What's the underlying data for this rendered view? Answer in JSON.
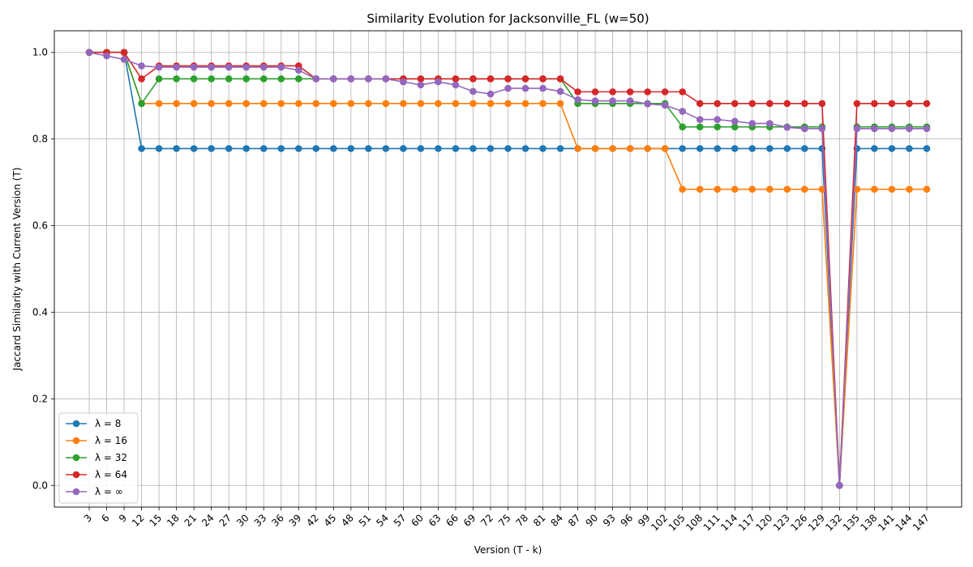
{
  "chart_data": {
    "type": "line",
    "title": "Similarity Evolution for Jacksonville_FL (w=50)",
    "xlabel": "Version (T - k)",
    "ylabel": "Jaccard Similarity with Current Version (T)",
    "ylim": [
      -0.05,
      1.05
    ],
    "yticks": [
      "0.0",
      "0.2",
      "0.4",
      "0.6",
      "0.8",
      "1.0"
    ],
    "grid": true,
    "legend_position": "lower-left",
    "x": [
      3,
      6,
      9,
      12,
      15,
      18,
      21,
      24,
      27,
      30,
      33,
      36,
      39,
      42,
      45,
      48,
      51,
      54,
      57,
      60,
      63,
      66,
      69,
      72,
      75,
      78,
      81,
      84,
      87,
      90,
      93,
      96,
      99,
      102,
      105,
      108,
      111,
      114,
      117,
      120,
      123,
      126,
      129,
      132,
      135,
      138,
      141,
      144,
      147
    ],
    "series": [
      {
        "name": "λ = 8",
        "color": "#1f77b4",
        "values": [
          1.0,
          1.0,
          1.0,
          0.778,
          0.778,
          0.778,
          0.778,
          0.778,
          0.778,
          0.778,
          0.778,
          0.778,
          0.778,
          0.778,
          0.778,
          0.778,
          0.778,
          0.778,
          0.778,
          0.778,
          0.778,
          0.778,
          0.778,
          0.778,
          0.778,
          0.778,
          0.778,
          0.778,
          0.778,
          0.778,
          0.778,
          0.778,
          0.778,
          0.778,
          0.778,
          0.778,
          0.778,
          0.778,
          0.778,
          0.778,
          0.778,
          0.778,
          0.778,
          0.0,
          0.778,
          0.778,
          0.778,
          0.778,
          0.778
        ]
      },
      {
        "name": "λ = 16",
        "color": "#ff7f0e",
        "values": [
          1.0,
          1.0,
          1.0,
          0.882,
          0.882,
          0.882,
          0.882,
          0.882,
          0.882,
          0.882,
          0.882,
          0.882,
          0.882,
          0.882,
          0.882,
          0.882,
          0.882,
          0.882,
          0.882,
          0.882,
          0.882,
          0.882,
          0.882,
          0.882,
          0.882,
          0.882,
          0.882,
          0.882,
          0.778,
          0.778,
          0.778,
          0.778,
          0.778,
          0.778,
          0.684,
          0.684,
          0.684,
          0.684,
          0.684,
          0.684,
          0.684,
          0.684,
          0.684,
          0.0,
          0.684,
          0.684,
          0.684,
          0.684,
          0.684
        ]
      },
      {
        "name": "λ = 32",
        "color": "#2ca02c",
        "values": [
          1.0,
          1.0,
          1.0,
          0.882,
          0.939,
          0.939,
          0.939,
          0.939,
          0.939,
          0.939,
          0.939,
          0.939,
          0.939,
          0.939,
          0.939,
          0.939,
          0.939,
          0.939,
          0.939,
          0.939,
          0.939,
          0.939,
          0.939,
          0.939,
          0.939,
          0.939,
          0.939,
          0.939,
          0.882,
          0.882,
          0.882,
          0.882,
          0.882,
          0.882,
          0.828,
          0.828,
          0.828,
          0.828,
          0.828,
          0.828,
          0.828,
          0.828,
          0.828,
          0.0,
          0.828,
          0.828,
          0.828,
          0.828,
          0.828
        ]
      },
      {
        "name": "λ = 64",
        "color": "#d62728",
        "values": [
          1.0,
          1.0,
          1.0,
          0.939,
          0.969,
          0.969,
          0.969,
          0.969,
          0.969,
          0.969,
          0.969,
          0.969,
          0.969,
          0.939,
          0.939,
          0.939,
          0.939,
          0.939,
          0.939,
          0.939,
          0.939,
          0.939,
          0.939,
          0.939,
          0.939,
          0.939,
          0.939,
          0.939,
          0.909,
          0.909,
          0.909,
          0.909,
          0.909,
          0.909,
          0.909,
          0.882,
          0.882,
          0.882,
          0.882,
          0.882,
          0.882,
          0.882,
          0.882,
          0.0,
          0.882,
          0.882,
          0.882,
          0.882,
          0.882
        ]
      },
      {
        "name": "λ = ∞",
        "color": "#9467bd",
        "values": [
          1.0,
          0.992,
          0.984,
          0.969,
          0.966,
          0.966,
          0.966,
          0.966,
          0.966,
          0.966,
          0.966,
          0.966,
          0.959,
          0.939,
          0.939,
          0.939,
          0.939,
          0.939,
          0.932,
          0.925,
          0.932,
          0.925,
          0.91,
          0.904,
          0.917,
          0.917,
          0.917,
          0.91,
          0.891,
          0.888,
          0.888,
          0.888,
          0.881,
          0.878,
          0.864,
          0.845,
          0.845,
          0.841,
          0.836,
          0.836,
          0.827,
          0.824,
          0.824,
          0.0,
          0.824,
          0.824,
          0.824,
          0.824,
          0.824
        ]
      }
    ]
  }
}
